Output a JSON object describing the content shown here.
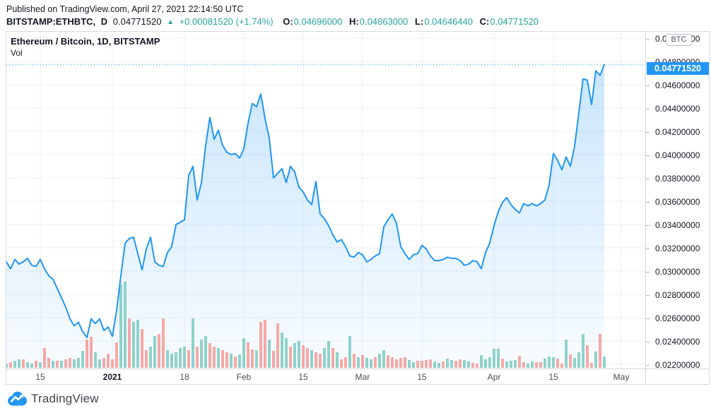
{
  "header": {
    "published_line": "Published on TradingView.com, April 27, 2021 22:14:50 UTC",
    "symbol": "BITSTAMP:ETHBTC,",
    "interval": "D",
    "last_price": "0.04771520",
    "direction_arrow": "▲",
    "change": "+0.00081520 (+1.74%)",
    "o_label": "O:",
    "o_value": "0.04696000",
    "h_label": "H:",
    "h_value": "0.04863000",
    "l_label": "L:",
    "l_value": "0.04646440",
    "c_label": "C:",
    "c_value": "0.04771520"
  },
  "chart": {
    "legend_title": "Ethereum / Bitcoin, 1D, BITSTAMP",
    "legend_vol_label": "Vol",
    "currency_badge": "BTC",
    "price_badge": "0.04771520"
  },
  "footer": {
    "brand": "TradingView"
  },
  "colors": {
    "accent_blue": "#2196f3",
    "teal_text": "#26a69a",
    "volume_up": "#8fd1ca",
    "volume_down": "#f5a8a6",
    "grid": "#eef1f8",
    "dark_text": "#131722"
  },
  "chart_data": {
    "type": "area",
    "title": "Ethereum / Bitcoin, 1D, BITSTAMP",
    "exchange": "BITSTAMP",
    "interval": "1D",
    "quote_unit": "BTC",
    "current_price": 0.0477152,
    "x_unit": "days since 2020-12-07 (daily closes, ends 2021-04-27)",
    "y_axis": {
      "min": 0.022,
      "max": 0.05,
      "tick_step": 0.002,
      "labels": [
        {
          "text": "0.05000000",
          "value": 0.05
        },
        {
          "text": "0.04800000",
          "value": 0.048
        },
        {
          "text": "0.04600000",
          "value": 0.046
        },
        {
          "text": "0.04400000",
          "value": 0.044
        },
        {
          "text": "0.04200000",
          "value": 0.042
        },
        {
          "text": "0.04000000",
          "value": 0.04
        },
        {
          "text": "0.03800000",
          "value": 0.038
        },
        {
          "text": "0.03600000",
          "value": 0.036
        },
        {
          "text": "0.03400000",
          "value": 0.034
        },
        {
          "text": "0.03200000",
          "value": 0.032
        },
        {
          "text": "0.03000000",
          "value": 0.03
        },
        {
          "text": "0.02800000",
          "value": 0.028
        },
        {
          "text": "0.02600000",
          "value": 0.026
        },
        {
          "text": "0.02400000",
          "value": 0.024
        },
        {
          "text": "0.02200000",
          "value": 0.022
        }
      ]
    },
    "x_ticks": [
      {
        "label": "15",
        "d": 8
      },
      {
        "label": "2021",
        "d": 25,
        "bold": true
      },
      {
        "label": "18",
        "d": 42
      },
      {
        "label": "Feb",
        "d": 56
      },
      {
        "label": "15",
        "d": 70
      },
      {
        "label": "Mar",
        "d": 84
      },
      {
        "label": "15",
        "d": 98
      },
      {
        "label": "Apr",
        "d": 115
      },
      {
        "label": "15",
        "d": 129
      },
      {
        "label": "May",
        "d": 145
      }
    ],
    "series": [
      {
        "name": "ETHBTC close",
        "points": [
          [
            0,
            0.0308
          ],
          [
            1,
            0.0302
          ],
          [
            2,
            0.031
          ],
          [
            3,
            0.0306
          ],
          [
            4,
            0.0308
          ],
          [
            5,
            0.0311
          ],
          [
            6,
            0.0305
          ],
          [
            7,
            0.0304
          ],
          [
            8,
            0.031
          ],
          [
            9,
            0.0302
          ],
          [
            10,
            0.0296
          ],
          [
            11,
            0.0293
          ],
          [
            12,
            0.0285
          ],
          [
            13,
            0.0277
          ],
          [
            14,
            0.0269
          ],
          [
            15,
            0.0259
          ],
          [
            16,
            0.0253
          ],
          [
            17,
            0.0256
          ],
          [
            18,
            0.0248
          ],
          [
            19,
            0.0243
          ],
          [
            20,
            0.0259
          ],
          [
            21,
            0.0255
          ],
          [
            22,
            0.0259
          ],
          [
            23,
            0.0249
          ],
          [
            24,
            0.0252
          ],
          [
            25,
            0.0244
          ],
          [
            26,
            0.0266
          ],
          [
            27,
            0.0296
          ],
          [
            28,
            0.0324
          ],
          [
            29,
            0.0328
          ],
          [
            30,
            0.0329
          ],
          [
            31,
            0.0315
          ],
          [
            32,
            0.0301
          ],
          [
            33,
            0.0319
          ],
          [
            34,
            0.0329
          ],
          [
            35,
            0.0308
          ],
          [
            36,
            0.0305
          ],
          [
            37,
            0.0304
          ],
          [
            38,
            0.0316
          ],
          [
            39,
            0.0321
          ],
          [
            40,
            0.034
          ],
          [
            41,
            0.0342
          ],
          [
            42,
            0.0344
          ],
          [
            43,
            0.0382
          ],
          [
            44,
            0.039
          ],
          [
            45,
            0.0361
          ],
          [
            46,
            0.0376
          ],
          [
            47,
            0.0408
          ],
          [
            48,
            0.0432
          ],
          [
            49,
            0.0413
          ],
          [
            50,
            0.0421
          ],
          [
            51,
            0.0408
          ],
          [
            52,
            0.0402
          ],
          [
            53,
            0.04
          ],
          [
            54,
            0.0401
          ],
          [
            55,
            0.0397
          ],
          [
            56,
            0.0405
          ],
          [
            57,
            0.0427
          ],
          [
            58,
            0.0444
          ],
          [
            59,
            0.0441
          ],
          [
            60,
            0.0452
          ],
          [
            61,
            0.0431
          ],
          [
            62,
            0.0414
          ],
          [
            63,
            0.038
          ],
          [
            64,
            0.0384
          ],
          [
            65,
            0.0388
          ],
          [
            66,
            0.0376
          ],
          [
            67,
            0.039
          ],
          [
            68,
            0.0385
          ],
          [
            69,
            0.0372
          ],
          [
            70,
            0.0368
          ],
          [
            71,
            0.0361
          ],
          [
            72,
            0.0357
          ],
          [
            73,
            0.0377
          ],
          [
            74,
            0.0349
          ],
          [
            75,
            0.0345
          ],
          [
            76,
            0.0339
          ],
          [
            77,
            0.0331
          ],
          [
            78,
            0.0325
          ],
          [
            79,
            0.0327
          ],
          [
            80,
            0.0321
          ],
          [
            81,
            0.0313
          ],
          [
            82,
            0.0312
          ],
          [
            83,
            0.0316
          ],
          [
            84,
            0.0314
          ],
          [
            85,
            0.0308
          ],
          [
            86,
            0.031
          ],
          [
            87,
            0.0313
          ],
          [
            88,
            0.0315
          ],
          [
            89,
            0.0338
          ],
          [
            90,
            0.0344
          ],
          [
            91,
            0.0349
          ],
          [
            92,
            0.0341
          ],
          [
            93,
            0.0321
          ],
          [
            94,
            0.0315
          ],
          [
            95,
            0.031
          ],
          [
            96,
            0.0314
          ],
          [
            97,
            0.0315
          ],
          [
            98,
            0.0322
          ],
          [
            99,
            0.0319
          ],
          [
            100,
            0.0313
          ],
          [
            101,
            0.0309
          ],
          [
            102,
            0.0309
          ],
          [
            103,
            0.031
          ],
          [
            104,
            0.0312
          ],
          [
            105,
            0.0311
          ],
          [
            106,
            0.0311
          ],
          [
            107,
            0.0309
          ],
          [
            108,
            0.0305
          ],
          [
            109,
            0.0306
          ],
          [
            110,
            0.0309
          ],
          [
            111,
            0.0308
          ],
          [
            112,
            0.0302
          ],
          [
            113,
            0.0316
          ],
          [
            114,
            0.0324
          ],
          [
            115,
            0.0339
          ],
          [
            116,
            0.0351
          ],
          [
            117,
            0.0359
          ],
          [
            118,
            0.0363
          ],
          [
            119,
            0.0357
          ],
          [
            120,
            0.0353
          ],
          [
            121,
            0.035
          ],
          [
            122,
            0.0358
          ],
          [
            123,
            0.0356
          ],
          [
            124,
            0.0358
          ],
          [
            125,
            0.0356
          ],
          [
            126,
            0.0358
          ],
          [
            127,
            0.0361
          ],
          [
            128,
            0.0374
          ],
          [
            129,
            0.0401
          ],
          [
            130,
            0.0395
          ],
          [
            131,
            0.0387
          ],
          [
            132,
            0.0398
          ],
          [
            133,
            0.039
          ],
          [
            134,
            0.0407
          ],
          [
            135,
            0.0436
          ],
          [
            136,
            0.0465
          ],
          [
            137,
            0.0464
          ],
          [
            138,
            0.0443
          ],
          [
            139,
            0.0472
          ],
          [
            140,
            0.0468
          ],
          [
            141,
            0.0477152
          ]
        ]
      }
    ],
    "volume": {
      "name": "Vol",
      "note": "relative bar heights in px (no volume scale shown on chart); c: g=up teal, r=down red",
      "bars": [
        [
          6,
          "g"
        ],
        [
          8,
          "r"
        ],
        [
          10,
          "g"
        ],
        [
          12,
          "g"
        ],
        [
          12,
          "r"
        ],
        [
          8,
          "g"
        ],
        [
          6,
          "g"
        ],
        [
          10,
          "r"
        ],
        [
          8,
          "g"
        ],
        [
          28,
          "r"
        ],
        [
          14,
          "r"
        ],
        [
          10,
          "g"
        ],
        [
          10,
          "r"
        ],
        [
          10,
          "g"
        ],
        [
          12,
          "r"
        ],
        [
          14,
          "r"
        ],
        [
          12,
          "g"
        ],
        [
          14,
          "g"
        ],
        [
          24,
          "g"
        ],
        [
          40,
          "r"
        ],
        [
          44,
          "r"
        ],
        [
          22,
          "g"
        ],
        [
          12,
          "g"
        ],
        [
          14,
          "r"
        ],
        [
          20,
          "r"
        ],
        [
          12,
          "r"
        ],
        [
          36,
          "r"
        ],
        [
          118,
          "g"
        ],
        [
          122,
          "g"
        ],
        [
          70,
          "r"
        ],
        [
          65,
          "g"
        ],
        [
          68,
          "g"
        ],
        [
          55,
          "r"
        ],
        [
          25,
          "r"
        ],
        [
          30,
          "g"
        ],
        [
          45,
          "g"
        ],
        [
          48,
          "r"
        ],
        [
          70,
          "r"
        ],
        [
          25,
          "g"
        ],
        [
          20,
          "g"
        ],
        [
          22,
          "g"
        ],
        [
          28,
          "g"
        ],
        [
          30,
          "g"
        ],
        [
          25,
          "r"
        ],
        [
          70,
          "g"
        ],
        [
          30,
          "r"
        ],
        [
          40,
          "g"
        ],
        [
          45,
          "g"
        ],
        [
          35,
          "r"
        ],
        [
          30,
          "r"
        ],
        [
          28,
          "g"
        ],
        [
          25,
          "r"
        ],
        [
          22,
          "r"
        ],
        [
          20,
          "g"
        ],
        [
          16,
          "r"
        ],
        [
          19,
          "g"
        ],
        [
          42,
          "g"
        ],
        [
          36,
          "r"
        ],
        [
          26,
          "r"
        ],
        [
          25,
          "g"
        ],
        [
          65,
          "r"
        ],
        [
          68,
          "r"
        ],
        [
          40,
          "g"
        ],
        [
          24,
          "r"
        ],
        [
          63,
          "r"
        ],
        [
          50,
          "g"
        ],
        [
          42,
          "g"
        ],
        [
          30,
          "r"
        ],
        [
          35,
          "g"
        ],
        [
          38,
          "g"
        ],
        [
          32,
          "r"
        ],
        [
          28,
          "r"
        ],
        [
          25,
          "g"
        ],
        [
          22,
          "r"
        ],
        [
          20,
          "r"
        ],
        [
          28,
          "g"
        ],
        [
          38,
          "g"
        ],
        [
          28,
          "r"
        ],
        [
          22,
          "g"
        ],
        [
          12,
          "r"
        ],
        [
          15,
          "r"
        ],
        [
          45,
          "g"
        ],
        [
          20,
          "r"
        ],
        [
          15,
          "g"
        ],
        [
          18,
          "r"
        ],
        [
          14,
          "g"
        ],
        [
          12,
          "g"
        ],
        [
          15,
          "r"
        ],
        [
          20,
          "g"
        ],
        [
          25,
          "g"
        ],
        [
          18,
          "r"
        ],
        [
          15,
          "r"
        ],
        [
          12,
          "r"
        ],
        [
          14,
          "r"
        ],
        [
          15,
          "r"
        ],
        [
          11,
          "g"
        ],
        [
          8,
          "g"
        ],
        [
          10,
          "r"
        ],
        [
          10,
          "r"
        ],
        [
          11,
          "r"
        ],
        [
          12,
          "r"
        ],
        [
          9,
          "g"
        ],
        [
          7,
          "g"
        ],
        [
          9,
          "r"
        ],
        [
          13,
          "g"
        ],
        [
          11,
          "g"
        ],
        [
          10,
          "r"
        ],
        [
          12,
          "r"
        ],
        [
          11,
          "g"
        ],
        [
          9,
          "g"
        ],
        [
          7,
          "r"
        ],
        [
          6,
          "r"
        ],
        [
          18,
          "g"
        ],
        [
          12,
          "g"
        ],
        [
          15,
          "g"
        ],
        [
          27,
          "g"
        ],
        [
          27,
          "g"
        ],
        [
          13,
          "r"
        ],
        [
          9,
          "g"
        ],
        [
          10,
          "g"
        ],
        [
          11,
          "g"
        ],
        [
          17,
          "r"
        ],
        [
          8,
          "r"
        ],
        [
          6,
          "g"
        ],
        [
          9,
          "g"
        ],
        [
          8,
          "r"
        ],
        [
          8,
          "r"
        ],
        [
          13,
          "g"
        ],
        [
          16,
          "g"
        ],
        [
          15,
          "g"
        ],
        [
          13,
          "r"
        ],
        [
          6,
          "r"
        ],
        [
          40,
          "g"
        ],
        [
          19,
          "r"
        ],
        [
          14,
          "g"
        ],
        [
          22,
          "g"
        ],
        [
          48,
          "g"
        ],
        [
          32,
          "r"
        ],
        [
          7,
          "r"
        ],
        [
          23,
          "g"
        ],
        [
          48,
          "r"
        ],
        [
          16,
          "g"
        ]
      ]
    },
    "legend_position": "top-left",
    "grid": true
  }
}
